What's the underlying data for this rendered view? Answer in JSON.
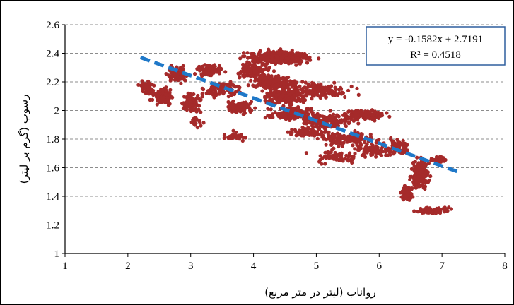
{
  "chart_data": {
    "type": "scatter",
    "xlabel": "رواناب (لیتر در متر مربع)",
    "ylabel": "رسوب (گرم بر لیتر)",
    "xlim": [
      1,
      8
    ],
    "ylim": [
      1,
      2.6
    ],
    "x_ticks": [
      "1",
      "2",
      "3",
      "4",
      "5",
      "6",
      "7",
      "8"
    ],
    "y_ticks": [
      "1",
      "1.2",
      "1.4",
      "1.6",
      "1.8",
      "2",
      "2.2",
      "2.4",
      "2.6"
    ],
    "grid": "horizontal dashed",
    "point_color": "#a52a2a",
    "trend_color": "#1f78c8",
    "trendline": {
      "slope": -0.1582,
      "intercept": 2.7191,
      "x_range": [
        2.2,
        7.3
      ],
      "equation": "y = -0.1582x + 2.7191",
      "r2": "R² = 0.4518"
    },
    "clusters": [
      {
        "x": 2.3,
        "y": 2.16,
        "sx": 0.1,
        "sy": 0.04,
        "n": 60
      },
      {
        "x": 2.55,
        "y": 2.1,
        "sx": 0.15,
        "sy": 0.05,
        "n": 90
      },
      {
        "x": 2.8,
        "y": 2.25,
        "sx": 0.15,
        "sy": 0.05,
        "n": 80
      },
      {
        "x": 3.0,
        "y": 2.05,
        "sx": 0.15,
        "sy": 0.06,
        "n": 90
      },
      {
        "x": 3.3,
        "y": 2.28,
        "sx": 0.2,
        "sy": 0.04,
        "n": 80
      },
      {
        "x": 3.5,
        "y": 2.15,
        "sx": 0.25,
        "sy": 0.05,
        "n": 110
      },
      {
        "x": 3.8,
        "y": 2.02,
        "sx": 0.2,
        "sy": 0.05,
        "n": 90
      },
      {
        "x": 4.0,
        "y": 2.28,
        "sx": 0.25,
        "sy": 0.05,
        "n": 110
      },
      {
        "x": 4.4,
        "y": 2.37,
        "sx": 0.45,
        "sy": 0.04,
        "n": 380
      },
      {
        "x": 4.3,
        "y": 2.2,
        "sx": 0.35,
        "sy": 0.05,
        "n": 180
      },
      {
        "x": 4.5,
        "y": 2.1,
        "sx": 0.35,
        "sy": 0.05,
        "n": 160
      },
      {
        "x": 4.6,
        "y": 1.98,
        "sx": 0.35,
        "sy": 0.05,
        "n": 140
      },
      {
        "x": 5.0,
        "y": 2.14,
        "sx": 0.45,
        "sy": 0.05,
        "n": 160
      },
      {
        "x": 5.2,
        "y": 1.93,
        "sx": 0.4,
        "sy": 0.05,
        "n": 140
      },
      {
        "x": 5.5,
        "y": 1.8,
        "sx": 0.4,
        "sy": 0.05,
        "n": 120
      },
      {
        "x": 5.8,
        "y": 1.97,
        "sx": 0.3,
        "sy": 0.03,
        "n": 160
      },
      {
        "x": 4.9,
        "y": 1.85,
        "sx": 0.3,
        "sy": 0.04,
        "n": 80
      },
      {
        "x": 5.3,
        "y": 1.67,
        "sx": 0.35,
        "sy": 0.04,
        "n": 60
      },
      {
        "x": 5.9,
        "y": 1.72,
        "sx": 0.3,
        "sy": 0.04,
        "n": 80
      },
      {
        "x": 6.3,
        "y": 1.75,
        "sx": 0.15,
        "sy": 0.05,
        "n": 60
      },
      {
        "x": 6.65,
        "y": 1.56,
        "sx": 0.12,
        "sy": 0.09,
        "n": 200
      },
      {
        "x": 6.45,
        "y": 1.42,
        "sx": 0.08,
        "sy": 0.05,
        "n": 80
      },
      {
        "x": 6.95,
        "y": 1.66,
        "sx": 0.15,
        "sy": 0.02,
        "n": 40
      },
      {
        "x": 6.85,
        "y": 1.3,
        "sx": 0.25,
        "sy": 0.02,
        "n": 90
      },
      {
        "x": 3.1,
        "y": 1.92,
        "sx": 0.1,
        "sy": 0.03,
        "n": 20
      },
      {
        "x": 3.7,
        "y": 1.82,
        "sx": 0.15,
        "sy": 0.03,
        "n": 30
      }
    ]
  }
}
